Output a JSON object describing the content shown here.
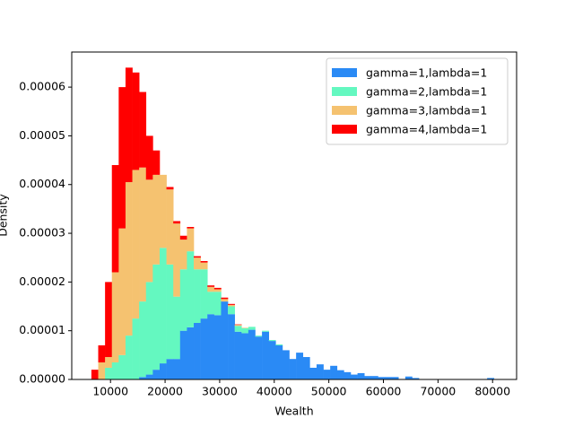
{
  "chart_data": {
    "type": "histogram",
    "stacked": true,
    "x_label": "Wealth",
    "y_label": "Density",
    "bins": [
      6500,
      7750,
      9000,
      10250,
      11500,
      12750,
      14000,
      15250,
      16500,
      17750,
      19000,
      20250,
      21500,
      22750,
      24000,
      25250,
      26500,
      27750,
      29000,
      30250,
      31500,
      32750,
      34000,
      35250,
      36500,
      37750,
      39000,
      40250,
      41500,
      42750,
      44000,
      45250,
      46500,
      47750,
      49000,
      50250,
      51500,
      52750,
      54000,
      55250,
      56500,
      57750,
      59000,
      60250,
      61500,
      62750,
      64000,
      65250,
      66500,
      67750,
      69000,
      70250,
      71500,
      72750,
      74000,
      75250,
      76500,
      77750,
      79000,
      80250,
      81500
    ],
    "series": [
      {
        "name": "gamma=1,lambda=1",
        "color": "#2a8af5",
        "values": [
          0,
          0,
          0,
          0,
          0,
          0,
          0,
          5e-07,
          1e-06,
          2e-06,
          3.3e-06,
          4.2e-06,
          4.2e-06,
          1e-05,
          1.07e-05,
          1.16e-05,
          1.25e-05,
          1.34e-05,
          1.32e-05,
          1.6e-05,
          1.34e-05,
          9.8e-06,
          9.5e-06,
          1.02e-05,
          8.8e-06,
          9.8e-06,
          7.9e-06,
          7e-06,
          6e-06,
          4.2e-06,
          5.5e-06,
          4.6e-06,
          2.4e-06,
          3.1e-06,
          2e-06,
          2.8e-06,
          1.9e-06,
          1.5e-06,
          1e-06,
          1.3e-06,
          7e-07,
          7e-07,
          5e-07,
          5e-07,
          5e-07,
          0,
          6e-07,
          3e-07,
          0,
          0,
          0,
          0,
          0,
          0,
          0,
          0,
          0,
          0,
          3e-07,
          0
        ]
      },
      {
        "name": "gamma=2,lambda=1",
        "color": "#64f8c0",
        "values": [
          0,
          0,
          2.4e-06,
          3.5e-06,
          5e-06,
          9e-06,
          1.25e-05,
          1.55e-05,
          1.9e-05,
          2.16e-05,
          2.37e-05,
          1.94e-05,
          1.28e-05,
          1.26e-05,
          1.56e-05,
          1.1e-05,
          1.01e-05,
          4.6e-06,
          4.8e-06,
          0,
          1.6e-06,
          1.2e-06,
          1e-06,
          6e-07,
          2e-07,
          2e-07,
          2e-07,
          2e-07,
          0,
          0,
          0,
          0,
          0,
          0,
          0,
          0,
          0,
          0,
          0,
          0,
          0,
          0,
          0,
          0,
          0,
          0,
          0,
          0,
          0,
          0,
          0,
          0,
          0,
          0,
          0,
          0,
          0,
          0,
          0,
          0
        ]
      },
      {
        "name": "gamma=3,lambda=1",
        "color": "#f5c270",
        "values": [
          0,
          3.5e-06,
          2.2e-06,
          1.85e-05,
          2.6e-05,
          3.15e-05,
          3.05e-05,
          2.75e-05,
          2.1e-05,
          1.84e-05,
          1.5e-05,
          1.54e-05,
          1.5e-05,
          6.1e-06,
          4.7e-06,
          2.4e-06,
          1.4e-06,
          1e-06,
          5e-07,
          5e-07,
          3e-07,
          2e-07,
          1e-07,
          0,
          0,
          0,
          0,
          0,
          0,
          0,
          0,
          0,
          0,
          0,
          0,
          0,
          0,
          0,
          0,
          0,
          0,
          0,
          0,
          0,
          0,
          0,
          0,
          0,
          0,
          0,
          0,
          0,
          0,
          0,
          0,
          0,
          0,
          0,
          0,
          0
        ]
      },
      {
        "name": "gamma=4,lambda=1",
        "color": "#ff0000",
        "values": [
          2e-06,
          3.5e-06,
          1.54e-05,
          2.2e-05,
          2.9e-05,
          2.35e-05,
          2e-05,
          1.55e-05,
          9e-06,
          5e-06,
          0,
          5e-07,
          5e-07,
          8e-07,
          3e-07,
          3e-07,
          3e-07,
          3e-07,
          3e-07,
          3e-07,
          2e-07,
          1e-07,
          0,
          0,
          0,
          0,
          0,
          0,
          0,
          0,
          0,
          0,
          0,
          0,
          0,
          0,
          0,
          0,
          0,
          0,
          0,
          0,
          0,
          0,
          0,
          0,
          0,
          0,
          0,
          0,
          0,
          0,
          0,
          0,
          0,
          0,
          0,
          0,
          0,
          0
        ]
      }
    ],
    "xlim": [
      2900,
      84400
    ],
    "xticks": [
      10000,
      20000,
      30000,
      40000,
      50000,
      60000,
      70000,
      80000
    ],
    "ylim": [
      0,
      6.72e-05
    ],
    "yticks": [
      {
        "value": 0,
        "label": "0.00000"
      },
      {
        "value": 1e-05,
        "label": "0.00001"
      },
      {
        "value": 2e-05,
        "label": "0.00002"
      },
      {
        "value": 3e-05,
        "label": "0.00003"
      },
      {
        "value": 4e-05,
        "label": "0.00004"
      },
      {
        "value": 5e-05,
        "label": "0.00005"
      },
      {
        "value": 6e-05,
        "label": "0.00006"
      }
    ],
    "legend": "upper right"
  }
}
